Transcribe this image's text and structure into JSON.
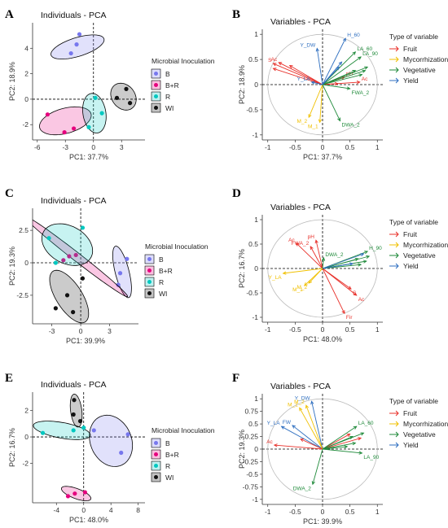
{
  "palette": {
    "B": "#7777ee",
    "B+R": "#e6007e",
    "R": "#00c8c0",
    "WI": "#111111",
    "Fruit": "#e8302a",
    "Mycorrhization": "#f0c000",
    "Vegetative": "#1f8a3a",
    "Yield": "#2f6fc0"
  },
  "chart_data": [
    {
      "type": "scatter",
      "panel": "A",
      "title": "Individuals - PCA",
      "xlabel": "PC1: 37.7%",
      "ylabel": "PC2: 18.9%",
      "xlim": [
        -6.5,
        5.5
      ],
      "ylim": [
        -3.2,
        6
      ],
      "xticks": [
        -6,
        -3,
        0,
        3
      ],
      "yticks": [
        -2,
        0,
        2,
        4
      ],
      "legend_title": "Microbial Inoculation",
      "legend": [
        "B",
        "B+R",
        "R",
        "WI"
      ],
      "series": [
        {
          "name": "B",
          "points": [
            [
              -2.4,
              3.6
            ],
            [
              -1.8,
              4.3
            ],
            [
              -1.5,
              5.1
            ]
          ],
          "ellipse": {
            "cx": -1.7,
            "cy": 4.1,
            "rx": 0.75,
            "ry": 2.9,
            "angle": -78
          }
        },
        {
          "name": "B+R",
          "points": [
            [
              -4.9,
              -1.2
            ],
            [
              -2.1,
              -2.3
            ],
            [
              -3.1,
              -2.6
            ]
          ],
          "ellipse": {
            "cx": -3.0,
            "cy": -1.7,
            "rx": 2.8,
            "ry": 1.0,
            "angle": 10
          }
        },
        {
          "name": "R",
          "points": [
            [
              -0.5,
              -2.2
            ],
            [
              0.2,
              0.1
            ],
            [
              0.9,
              -1.1
            ]
          ],
          "ellipse": {
            "cx": 0.1,
            "cy": -1.1,
            "rx": 1.6,
            "ry": 1.2,
            "angle": -70
          }
        },
        {
          "name": "WI",
          "points": [
            [
              2.5,
              0.1
            ],
            [
              3.5,
              0.8
            ],
            [
              3.9,
              -0.3
            ]
          ],
          "ellipse": {
            "cx": 3.2,
            "cy": 0.2,
            "rx": 1.4,
            "ry": 1.0,
            "angle": -20
          }
        }
      ]
    },
    {
      "type": "biplot",
      "panel": "B",
      "title": "Variables - PCA",
      "xlabel": "PC1: 37.7%",
      "ylabel": "PC2: 18.9%",
      "xlim": [
        -1.1,
        1.1
      ],
      "ylim": [
        -1.1,
        1.1
      ],
      "xticks": [
        -1,
        -0.5,
        0,
        0.5,
        1
      ],
      "yticks": [
        -1,
        -0.5,
        0,
        0.5,
        1
      ],
      "legend_title": "Type of variable",
      "legend": [
        "Fruit",
        "Mycorrhization",
        "Vegetative",
        "Yield"
      ],
      "vectors": [
        {
          "label": "S",
          "x": -0.9,
          "y": 0.42,
          "group": "Fruit"
        },
        {
          "label": "Ac",
          "x": -0.8,
          "y": 0.44,
          "group": "Fruit"
        },
        {
          "label": "",
          "x": -0.9,
          "y": 0.32,
          "group": "Fruit"
        },
        {
          "label": "",
          "x": -0.6,
          "y": 0.38,
          "group": "Fruit"
        },
        {
          "label": "",
          "x": 0.28,
          "y": 0.02,
          "group": "Fruit"
        },
        {
          "label": "Ac",
          "x": 0.68,
          "y": 0.05,
          "group": "Fruit"
        },
        {
          "label": "pH",
          "x": 0.4,
          "y": 0.15,
          "group": "Fruit"
        },
        {
          "label": "M_2",
          "x": -0.25,
          "y": -0.65,
          "group": "Mycorrhization"
        },
        {
          "label": "M_1",
          "x": -0.05,
          "y": -0.75,
          "group": "Mycorrhization"
        },
        {
          "label": "DWA_2",
          "x": 0.32,
          "y": -0.72,
          "group": "Vegetative"
        },
        {
          "label": "FWA_2",
          "x": 0.5,
          "y": -0.08,
          "group": "Vegetative"
        },
        {
          "label": "LA_90",
          "x": 0.7,
          "y": 0.55,
          "group": "Vegetative"
        },
        {
          "label": "LA_60",
          "x": 0.6,
          "y": 0.65,
          "group": "Vegetative"
        },
        {
          "label": "",
          "x": 0.82,
          "y": 0.35,
          "group": "Vegetative"
        },
        {
          "label": "",
          "x": 0.78,
          "y": 0.28,
          "group": "Vegetative"
        },
        {
          "label": "",
          "x": 0.72,
          "y": 0.2,
          "group": "Vegetative"
        },
        {
          "label": "",
          "x": 0.6,
          "y": 0.28,
          "group": "Vegetative"
        },
        {
          "label": "H_60",
          "x": 0.42,
          "y": 0.92,
          "group": "Yield"
        },
        {
          "label": "Y_DW",
          "x": -0.1,
          "y": 0.72,
          "group": "Yield"
        },
        {
          "label": "Y_LA",
          "x": -0.2,
          "y": 0.05,
          "group": "Yield"
        },
        {
          "label": "",
          "x": 0.35,
          "y": 0.45,
          "group": "Yield"
        },
        {
          "label": "",
          "x": 0.3,
          "y": 0.35,
          "group": "Yield"
        }
      ]
    },
    {
      "type": "scatter",
      "panel": "C",
      "title": "Individuals - PCA",
      "xlabel": "PC1: 39.9%",
      "ylabel": "PC2: 19.3%",
      "xlim": [
        -5,
        6
      ],
      "ylim": [
        -4.7,
        4.2
      ],
      "xticks": [
        -3,
        0,
        3
      ],
      "yticks": [
        -2.5,
        0,
        2.5
      ],
      "legend_title": "Microbial Inoculation",
      "legend": [
        "B",
        "B+R",
        "R",
        "WI"
      ],
      "series": [
        {
          "name": "B",
          "points": [
            [
              4.8,
              0.3
            ],
            [
              4.1,
              -0.8
            ],
            [
              3.9,
              -1.7
            ]
          ],
          "ellipse": {
            "cx": 4.3,
            "cy": -0.7,
            "rx": 2.1,
            "ry": 0.7,
            "angle": -70
          }
        },
        {
          "name": "B+R",
          "points": [
            [
              -1.8,
              0.2
            ],
            [
              -1.2,
              0.5
            ],
            [
              -0.5,
              0.6
            ]
          ],
          "ellipse": {
            "cx": -0.5,
            "cy": 0.5,
            "rx": 6.2,
            "ry": 0.35,
            "angle": -30
          }
        },
        {
          "name": "R",
          "points": [
            [
              -3.3,
              1.9
            ],
            [
              0.2,
              2.7
            ],
            [
              -2.6,
              0.0
            ]
          ],
          "ellipse": {
            "cx": -1.4,
            "cy": 1.4,
            "rx": 2.7,
            "ry": 1.5,
            "angle": -15
          }
        },
        {
          "name": "WI",
          "points": [
            [
              -2.6,
              -3.5
            ],
            [
              -1.4,
              -2.5
            ],
            [
              -0.8,
              -3.8
            ],
            [
              0.2,
              -1.2
            ]
          ],
          "ellipse": {
            "cx": -1.2,
            "cy": -2.6,
            "rx": 2.6,
            "ry": 1.2,
            "angle": -45
          }
        }
      ]
    },
    {
      "type": "biplot",
      "panel": "D",
      "title": "Variables - PCA",
      "xlabel": "PC1: 48.0%",
      "ylabel": "PC2: 16.7%",
      "xlim": [
        -1.1,
        1.1
      ],
      "ylim": [
        -1.1,
        1.1
      ],
      "xticks": [
        -1,
        -0.5,
        0,
        0.5,
        1
      ],
      "yticks": [
        -1,
        -0.5,
        0,
        0.5,
        1
      ],
      "legend_title": "Type of variable",
      "legend": [
        "Fruit",
        "Mycorrhization",
        "Vegetative",
        "Yield"
      ],
      "vectors": [
        {
          "label": "pH",
          "x": -0.12,
          "y": 0.58,
          "group": "Fruit"
        },
        {
          "label": "Ac",
          "x": -0.48,
          "y": 0.52,
          "group": "Fruit"
        },
        {
          "label": "S",
          "x": 0.52,
          "y": -0.42,
          "group": "Fruit"
        },
        {
          "label": "Ac",
          "x": 0.62,
          "y": -0.55,
          "group": "Fruit"
        },
        {
          "label": "Fir",
          "x": 0.4,
          "y": -0.92,
          "group": "Fruit"
        },
        {
          "label": "FWA_2",
          "x": -0.22,
          "y": 0.45,
          "group": "Fruit"
        },
        {
          "label": "Y_LA",
          "x": -0.72,
          "y": -0.1,
          "group": "Mycorrhization"
        },
        {
          "label": "M_1",
          "x": -0.33,
          "y": -0.35,
          "group": "Mycorrhization"
        },
        {
          "label": "M_2",
          "x": -0.25,
          "y": -0.3,
          "group": "Mycorrhization"
        },
        {
          "label": "DWA_2",
          "x": 0.02,
          "y": 0.22,
          "group": "Vegetative"
        },
        {
          "label": "H_90",
          "x": 0.82,
          "y": 0.35,
          "group": "Vegetative"
        },
        {
          "label": "",
          "x": 0.85,
          "y": 0.25,
          "group": "Vegetative"
        },
        {
          "label": "",
          "x": 0.8,
          "y": 0.15,
          "group": "Vegetative"
        },
        {
          "label": "",
          "x": 0.7,
          "y": 0.08,
          "group": "Vegetative"
        },
        {
          "label": "",
          "x": 0.65,
          "y": 0.2,
          "group": "Vegetative"
        },
        {
          "label": "",
          "x": 0.75,
          "y": 0.3,
          "group": "Yield"
        },
        {
          "label": "",
          "x": 0.55,
          "y": 0.1,
          "group": "Yield"
        }
      ]
    },
    {
      "type": "scatter",
      "panel": "E",
      "title": "Individuals - PCA",
      "xlabel": "PC1: 48.0%",
      "ylabel": "PC2: 16.7%",
      "xlim": [
        -7.5,
        9
      ],
      "ylim": [
        -5,
        3.4
      ],
      "xticks": [
        -4,
        0,
        4,
        8
      ],
      "yticks": [
        -2,
        0,
        2
      ],
      "legend_title": "Microbial Inoculation",
      "legend": [
        "B",
        "B+R",
        "R",
        "WI"
      ],
      "series": [
        {
          "name": "B",
          "points": [
            [
              1.5,
              0.5
            ],
            [
              5.5,
              -1.2
            ],
            [
              6.5,
              0.2
            ]
          ],
          "ellipse": {
            "cx": 4.0,
            "cy": -0.3,
            "rx": 3.2,
            "ry": 1.9,
            "angle": -10
          }
        },
        {
          "name": "B+R",
          "points": [
            [
              -2.3,
              -4.5
            ],
            [
              -1.3,
              -4.3
            ],
            [
              0.2,
              -4.2
            ]
          ],
          "ellipse": {
            "cx": -1.1,
            "cy": -4.3,
            "rx": 2.2,
            "ry": 0.4,
            "angle": -10
          }
        },
        {
          "name": "R",
          "points": [
            [
              -6.0,
              0.3
            ],
            [
              -1.5,
              0.5
            ],
            [
              0.0,
              0.7
            ]
          ],
          "ellipse": {
            "cx": -3.2,
            "cy": 0.5,
            "rx": 4.2,
            "ry": 0.6,
            "angle": -5
          }
        },
        {
          "name": "WI",
          "points": [
            [
              -1.4,
              2.8
            ],
            [
              -1.5,
              1.7
            ],
            [
              -0.5,
              1.2
            ]
          ],
          "ellipse": {
            "cx": -1.1,
            "cy": 2.0,
            "rx": 1.3,
            "ry": 0.8,
            "angle": -70
          }
        }
      ]
    },
    {
      "type": "biplot",
      "panel": "F",
      "title": "Variables - PCA",
      "xlabel": "PC1: 39.9%",
      "ylabel": "PC2: 19.3%",
      "xlim": [
        -1.1,
        1.1
      ],
      "ylim": [
        -1.1,
        1.1
      ],
      "xticks": [
        -1,
        -0.5,
        0,
        0.5,
        1
      ],
      "yticks": [
        -1,
        -0.75,
        -0.5,
        -0.25,
        0,
        0.25,
        0.5,
        0.75,
        1
      ],
      "legend_title": "Type of variable",
      "legend": [
        "Fruit",
        "Mycorrhization",
        "Vegetative",
        "Yield"
      ],
      "vectors": [
        {
          "label": "Y_DW",
          "x": -0.2,
          "y": 0.95,
          "group": "Yield"
        },
        {
          "label": "Y_LA",
          "x": -0.75,
          "y": 0.45,
          "group": "Yield"
        },
        {
          "label": "FW",
          "x": -0.55,
          "y": 0.47,
          "group": "Yield"
        },
        {
          "label": "M_2",
          "x": -0.3,
          "y": 0.87,
          "group": "Mycorrhization"
        },
        {
          "label": "M_1",
          "x": -0.42,
          "y": 0.82,
          "group": "Mycorrhization"
        },
        {
          "label": "Ac",
          "x": -0.88,
          "y": 0.08,
          "group": "Fruit"
        },
        {
          "label": "",
          "x": -0.4,
          "y": 0.2,
          "group": "Fruit"
        },
        {
          "label": "",
          "x": 0.5,
          "y": 0.3,
          "group": "Fruit"
        },
        {
          "label": "",
          "x": 0.7,
          "y": 0.22,
          "group": "Fruit"
        },
        {
          "label": "DWA_2",
          "x": -0.18,
          "y": -0.7,
          "group": "Vegetative"
        },
        {
          "label": "LA_60",
          "x": 0.62,
          "y": 0.45,
          "group": "Vegetative"
        },
        {
          "label": "LA_90",
          "x": 0.72,
          "y": -0.08,
          "group": "Vegetative"
        },
        {
          "label": "",
          "x": 0.75,
          "y": 0.32,
          "group": "Vegetative"
        },
        {
          "label": "",
          "x": 0.55,
          "y": 0.25,
          "group": "Vegetative"
        },
        {
          "label": "",
          "x": 0.45,
          "y": 0.05,
          "group": "Vegetative"
        },
        {
          "label": "",
          "x": 0.6,
          "y": 0.12,
          "group": "Vegetative"
        }
      ]
    }
  ]
}
